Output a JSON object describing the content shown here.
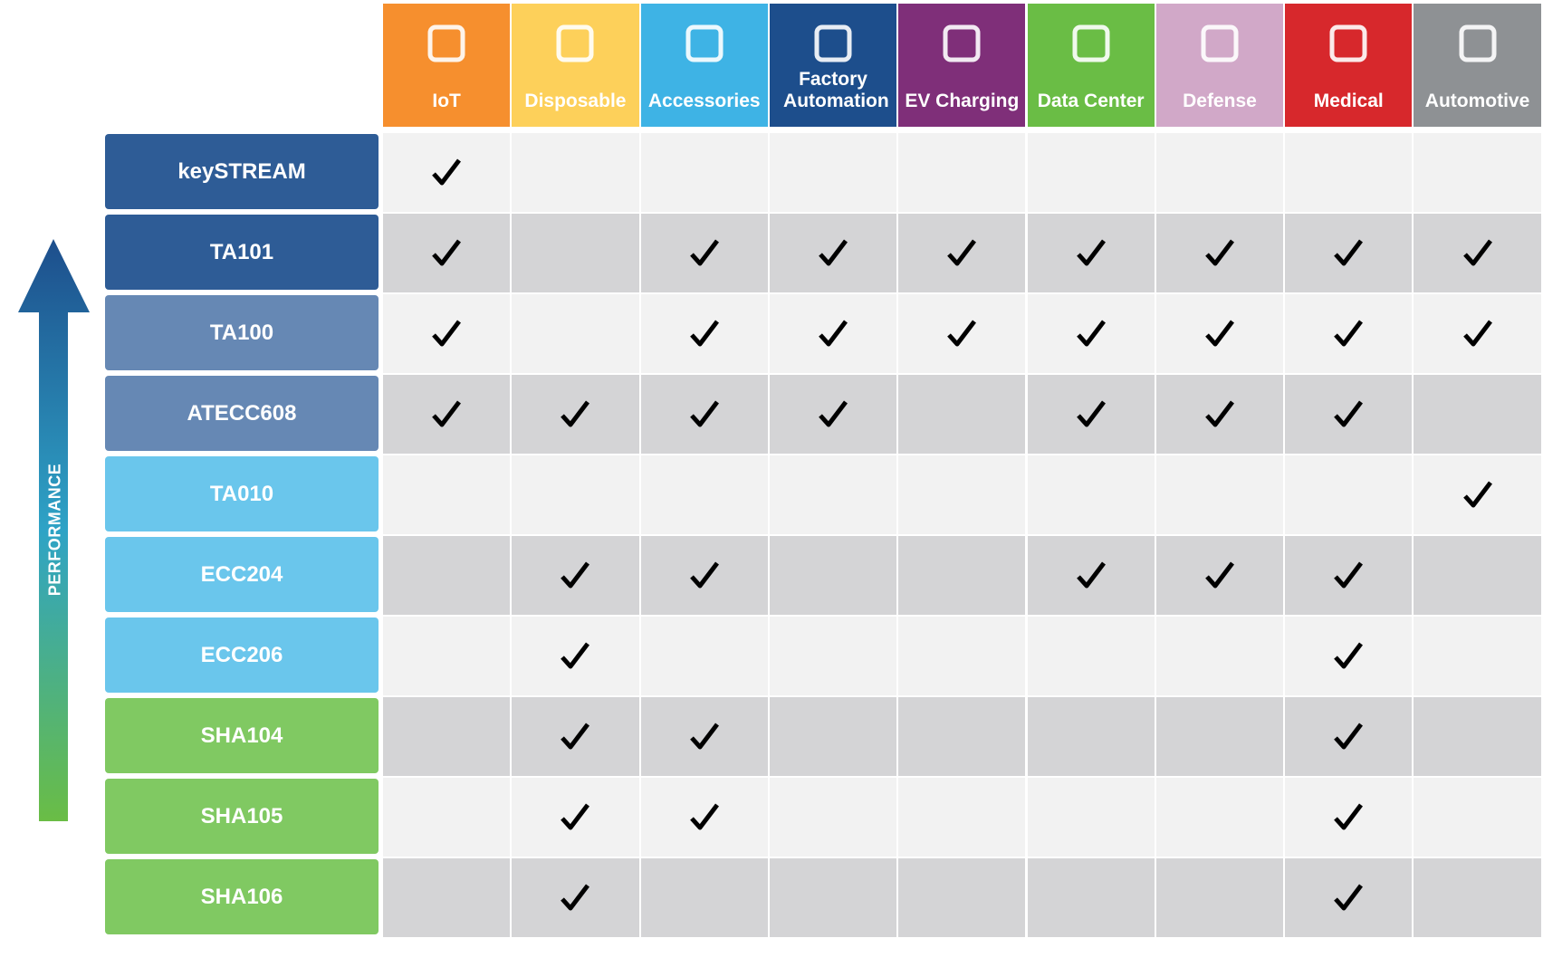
{
  "columns": [
    {
      "label": "IoT",
      "color": "#f68f2e"
    },
    {
      "label": "Disposable",
      "color": "#fdd05a"
    },
    {
      "label": "Accessories",
      "color": "#3eb3e5"
    },
    {
      "label": "Factory Automation",
      "color": "#1d4e8c"
    },
    {
      "label": "EV Charging",
      "color": "#7f2f79"
    },
    {
      "label": "Data Center",
      "color": "#6abd45"
    },
    {
      "label": "Defense",
      "color": "#d1a8c8"
    },
    {
      "label": "Medical",
      "color": "#d7282c"
    },
    {
      "label": "Automotive",
      "color": "#8e9194"
    }
  ],
  "rows": [
    {
      "label": "keySTREAM",
      "color": "#2e5c96",
      "checks": [
        true,
        false,
        false,
        false,
        false,
        false,
        false,
        false,
        false
      ]
    },
    {
      "label": "TA101",
      "color": "#2e5c96",
      "checks": [
        true,
        false,
        true,
        true,
        true,
        true,
        true,
        true,
        true
      ]
    },
    {
      "label": "TA100",
      "color": "#6688b4",
      "checks": [
        true,
        false,
        true,
        true,
        true,
        true,
        true,
        true,
        true
      ]
    },
    {
      "label": "ATECC608",
      "color": "#6688b4",
      "checks": [
        true,
        true,
        true,
        true,
        false,
        true,
        true,
        true,
        false
      ]
    },
    {
      "label": "TA010",
      "color": "#6ac6ec",
      "checks": [
        false,
        false,
        false,
        false,
        false,
        false,
        false,
        false,
        true
      ]
    },
    {
      "label": "ECC204",
      "color": "#6ac6ec",
      "checks": [
        false,
        true,
        true,
        false,
        false,
        true,
        true,
        true,
        false
      ]
    },
    {
      "label": "ECC206",
      "color": "#6ac6ec",
      "checks": [
        false,
        true,
        false,
        false,
        false,
        false,
        false,
        true,
        false
      ]
    },
    {
      "label": "SHA104",
      "color": "#80c962",
      "checks": [
        false,
        true,
        true,
        false,
        false,
        false,
        false,
        true,
        false
      ]
    },
    {
      "label": "SHA105",
      "color": "#80c962",
      "checks": [
        false,
        true,
        true,
        false,
        false,
        false,
        false,
        true,
        false
      ]
    },
    {
      "label": "SHA106",
      "color": "#80c962",
      "checks": [
        false,
        true,
        false,
        false,
        false,
        false,
        false,
        true,
        false
      ]
    }
  ],
  "axis_label": "PERFORMANCE"
}
